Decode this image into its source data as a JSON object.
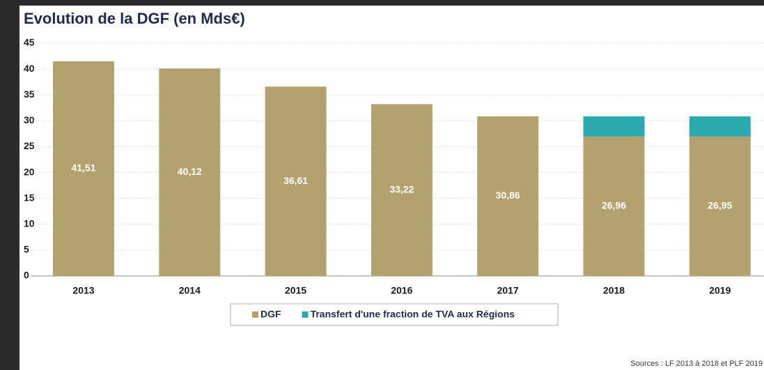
{
  "chart_data": {
    "type": "stacked_bar",
    "title": "Evolution de la DGF (en Mds€)",
    "source": "Sources : LF 2013 à 2018 et PLF 2019",
    "categories": [
      "2013",
      "2014",
      "2015",
      "2016",
      "2017",
      "2018",
      "2019"
    ],
    "series": [
      {
        "name": "DGF",
        "color": "#b5a16e",
        "values": [
          41.51,
          40.12,
          36.61,
          33.22,
          30.86,
          26.96,
          26.95
        ],
        "value_labels": [
          "41,51",
          "40,12",
          "36,61",
          "33,22",
          "30,86",
          "26,96",
          "26,95"
        ]
      },
      {
        "name": "Transfert d'une fraction de TVA aux Régions",
        "color": "#2ba9b1",
        "values": [
          null,
          null,
          null,
          null,
          null,
          3.9,
          3.9
        ]
      }
    ],
    "ylim": [
      0,
      45
    ],
    "yticks": [
      0,
      5,
      10,
      15,
      20,
      25,
      30,
      35,
      40,
      45
    ],
    "grid": true,
    "legend": "bottom"
  }
}
